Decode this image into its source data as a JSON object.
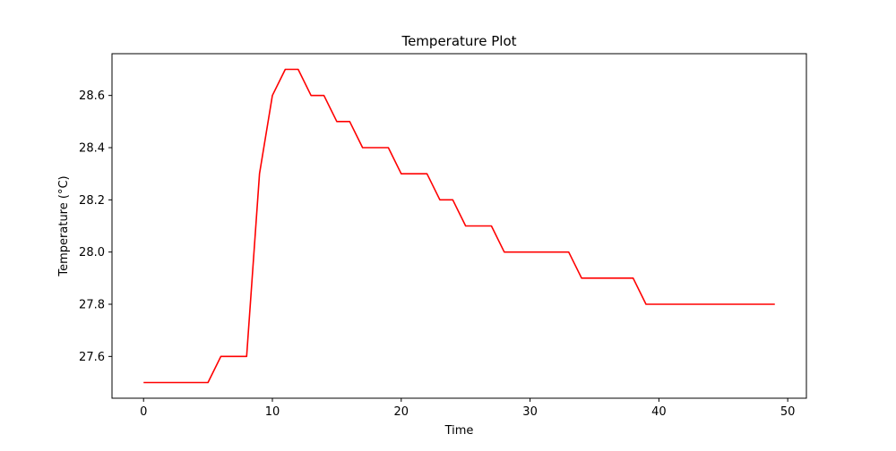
{
  "chart_data": {
    "type": "line",
    "title": "Temperature Plot",
    "xlabel": "Time",
    "ylabel": "Temperature (°C)",
    "xlim": [
      -2.45,
      51.45
    ],
    "ylim": [
      27.44,
      28.76
    ],
    "x_ticks": [
      0,
      10,
      20,
      30,
      40,
      50
    ],
    "y_ticks": [
      27.6,
      27.8,
      28.0,
      28.2,
      28.4,
      28.6
    ],
    "grid": false,
    "colors": {
      "line": "#ff0000",
      "axes": "#000000"
    },
    "series": [
      {
        "x": [
          0,
          1,
          2,
          3,
          4,
          5,
          6,
          7,
          8,
          9,
          10,
          11,
          12,
          13,
          14,
          15,
          16,
          17,
          18,
          19,
          20,
          21,
          22,
          23,
          24,
          25,
          26,
          27,
          28,
          29,
          30,
          31,
          32,
          33,
          34,
          35,
          36,
          37,
          38,
          39,
          40,
          41,
          42,
          43,
          44,
          45,
          46,
          47,
          48,
          49
        ],
        "values": [
          27.5,
          27.5,
          27.5,
          27.5,
          27.5,
          27.5,
          27.6,
          27.6,
          27.6,
          28.3,
          28.6,
          28.7,
          28.7,
          28.6,
          28.6,
          28.5,
          28.5,
          28.4,
          28.4,
          28.4,
          28.3,
          28.3,
          28.3,
          28.2,
          28.2,
          28.1,
          28.1,
          28.1,
          28.0,
          28.0,
          28.0,
          28.0,
          28.0,
          28.0,
          27.9,
          27.9,
          27.9,
          27.9,
          27.9,
          27.8,
          27.8,
          27.8,
          27.8,
          27.8,
          27.8,
          27.8,
          27.8,
          27.8,
          27.8,
          27.8
        ]
      }
    ]
  }
}
